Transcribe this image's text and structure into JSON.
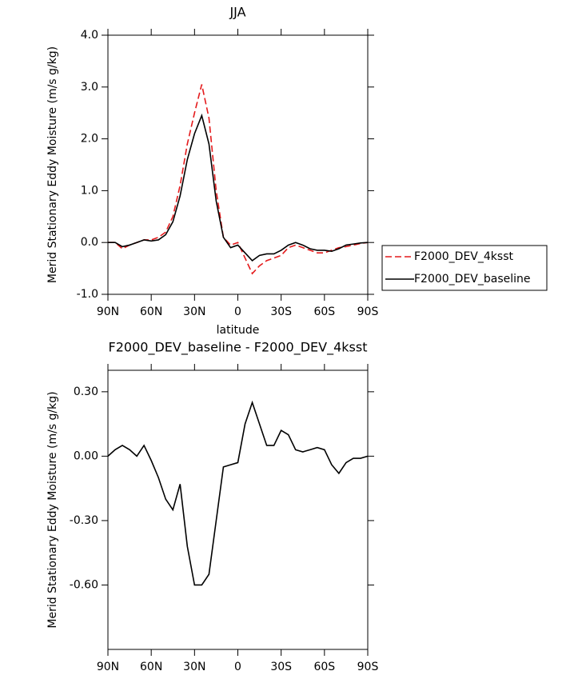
{
  "chart_data": [
    {
      "type": "line",
      "title": "JJA",
      "y_label": "Merid Stationary Eddy Moisture (m/s g/kg)",
      "x_label": "latitude",
      "x": [
        90,
        85,
        80,
        75,
        70,
        65,
        60,
        55,
        50,
        45,
        40,
        35,
        30,
        25,
        20,
        15,
        10,
        5,
        0,
        -5,
        -10,
        -15,
        -20,
        -25,
        -30,
        -35,
        -40,
        -45,
        -50,
        -55,
        -60,
        -65,
        -70,
        -75,
        -80,
        -85,
        -90
      ],
      "series": [
        {
          "name": "F2000_DEV_4ksst",
          "color": "#e41a1c",
          "linestyle": "dashed",
          "values": [
            0,
            0,
            -0.12,
            -0.05,
            0,
            0.05,
            0.05,
            0.1,
            0.2,
            0.5,
            1.1,
            1.9,
            2.5,
            3.05,
            2.4,
            1.0,
            0.1,
            -0.05,
            0,
            -0.3,
            -0.6,
            -0.45,
            -0.35,
            -0.3,
            -0.25,
            -0.1,
            -0.05,
            -0.1,
            -0.15,
            -0.2,
            -0.2,
            -0.15,
            -0.1,
            -0.08,
            -0.05,
            -0.02,
            0
          ]
        },
        {
          "name": "F2000_DEV_baseline",
          "color": "#000000",
          "linestyle": "solid",
          "values": [
            0,
            0,
            -0.08,
            -0.05,
            0,
            0.05,
            0.03,
            0.05,
            0.15,
            0.4,
            0.9,
            1.6,
            2.1,
            2.45,
            1.9,
            0.8,
            0.1,
            -0.1,
            -0.05,
            -0.2,
            -0.35,
            -0.25,
            -0.22,
            -0.22,
            -0.15,
            -0.05,
            0,
            -0.05,
            -0.12,
            -0.15,
            -0.15,
            -0.17,
            -0.12,
            -0.05,
            -0.03,
            -0.01,
            0
          ]
        }
      ],
      "xlim": [
        90,
        -90
      ],
      "xticks": [
        {
          "value": 90,
          "label": "90N"
        },
        {
          "value": 60,
          "label": "60N"
        },
        {
          "value": 30,
          "label": "30N"
        },
        0,
        {
          "value": -30,
          "label": "30S"
        },
        {
          "value": -60,
          "label": "60S"
        },
        {
          "value": -90,
          "label": "90S"
        }
      ],
      "ylim": [
        -1,
        4
      ],
      "yticks": [
        {
          "value": -1,
          "label": "-1.0"
        },
        {
          "value": 0,
          "label": "0.0"
        },
        {
          "value": 1,
          "label": "1.0"
        },
        {
          "value": 2,
          "label": "2.0"
        },
        {
          "value": 3,
          "label": "3.0"
        },
        {
          "value": 4,
          "label": "4.0"
        }
      ],
      "legend": "right"
    },
    {
      "type": "line",
      "title": "F2000_DEV_baseline - F2000_DEV_4ksst",
      "y_label": "Merid Stationary Eddy Moisture (m/s g/kg)",
      "x_label": "latitude",
      "x": [
        90,
        85,
        80,
        75,
        70,
        65,
        60,
        55,
        50,
        45,
        40,
        35,
        30,
        25,
        20,
        15,
        10,
        5,
        0,
        -5,
        -10,
        -15,
        -20,
        -25,
        -30,
        -35,
        -40,
        -45,
        -50,
        -55,
        -60,
        -65,
        -70,
        -75,
        -80,
        -85,
        -90
      ],
      "values": [
        0,
        0.03,
        0.05,
        0.03,
        0,
        0.05,
        -0.02,
        -0.1,
        -0.2,
        -0.25,
        -0.13,
        -0.42,
        -0.6,
        -0.6,
        -0.55,
        -0.3,
        -0.05,
        -0.04,
        -0.03,
        0.15,
        0.25,
        0.15,
        0.05,
        0.05,
        0.12,
        0.1,
        0.03,
        0.02,
        0.03,
        0.04,
        0.03,
        -0.04,
        -0.08,
        -0.03,
        -0.01,
        -0.01,
        0
      ],
      "color": "#000000",
      "xlim": [
        90,
        -90
      ],
      "xticks": [
        {
          "value": 90,
          "label": "90N"
        },
        {
          "value": 60,
          "label": "60N"
        },
        {
          "value": 30,
          "label": "30N"
        },
        0,
        {
          "value": -30,
          "label": "30S"
        },
        {
          "value": -60,
          "label": "60S"
        },
        {
          "value": -90,
          "label": "90S"
        }
      ],
      "ylim": [
        -0.9,
        0.4
      ],
      "yticks": [
        {
          "value": -0.6,
          "label": "-0.60"
        },
        {
          "value": -0.3,
          "label": "-0.30"
        },
        {
          "value": 0,
          "label": "0.00"
        },
        {
          "value": 0.3,
          "label": "0.30"
        }
      ]
    }
  ]
}
